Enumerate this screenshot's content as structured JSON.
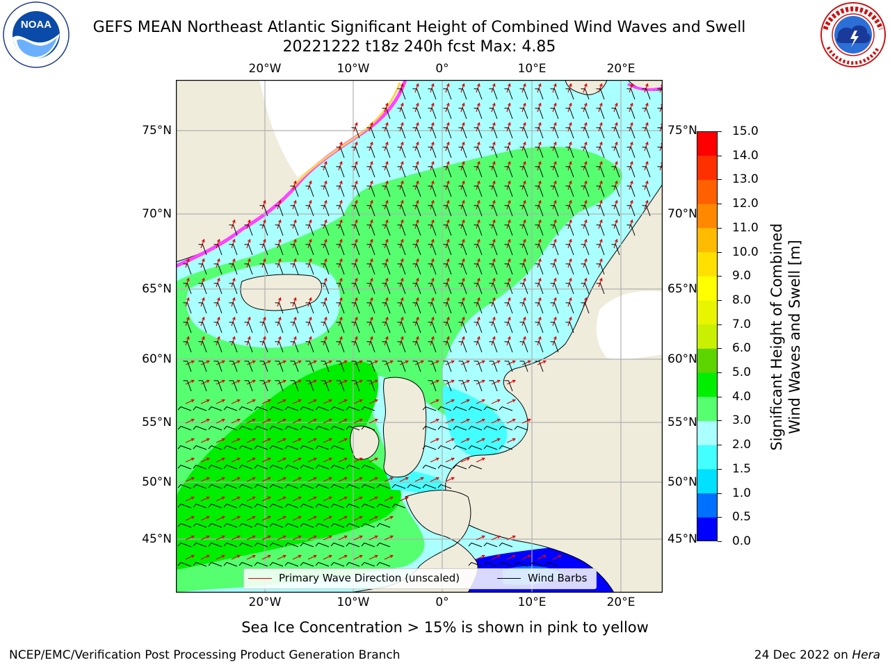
{
  "header": {
    "title_line1": "GEFS MEAN Northeast Atlantic Significant Height of Combined Wind Waves and Swell",
    "title_line2": "20221222 t18z 240h fcst   Max: 4.85"
  },
  "logos": {
    "left": {
      "icon": "noaa-logo-icon",
      "text": "NOAA",
      "ring_text": "NATIONAL OCEANIC AND ATMOSPHERIC ADMINISTRATION · U.S. DEPARTMENT OF COMMERCE"
    },
    "right": {
      "icon": "nws-logo-icon",
      "ring_text": "NATIONAL WEATHER SERVICE"
    }
  },
  "map": {
    "lon_ticks": [
      "20°W",
      "10°W",
      "0°",
      "10°E",
      "20°E"
    ],
    "lat_ticks": [
      "75°N",
      "70°N",
      "65°N",
      "60°N",
      "55°N",
      "50°N",
      "45°N"
    ],
    "colors": {
      "land": "#efecdc",
      "ice_free_land": "#ffffff",
      "arrow": "#e00000",
      "barb": "#000000",
      "grid": "#b0b0b0"
    },
    "legend": {
      "arrow_label": "Primary Wave Direction (unscaled)",
      "barb_label": "Wind Barbs"
    }
  },
  "colorbar": {
    "title_line1": "Significant Height of Combined",
    "title_line2": "Wind Waves and Swell [m]",
    "levels": [
      "0.0",
      "0.5",
      "1.0",
      "1.5",
      "2.0",
      "3.0",
      "4.0",
      "5.0",
      "6.0",
      "7.0",
      "8.0",
      "9.0",
      "10.0",
      "11.0",
      "12.0",
      "13.0",
      "14.0",
      "15.0"
    ],
    "colors": [
      "#0000ff",
      "#0070ff",
      "#00e0ff",
      "#44ffff",
      "#aaffff",
      "#55ff70",
      "#00ee00",
      "#5cd400",
      "#c8f000",
      "#e8f400",
      "#ffff00",
      "#ffe000",
      "#ffbb00",
      "#ff8800",
      "#ff6000",
      "#ff3000",
      "#ff0000"
    ]
  },
  "subtitle": "Sea Ice Concentration > 15% is shown in pink to yellow",
  "footer": {
    "left": "NCEP/EMC/Verification Post Processing Product Generation Branch",
    "right_date": "24 Dec 2022 on ",
    "right_host": "Hera"
  }
}
